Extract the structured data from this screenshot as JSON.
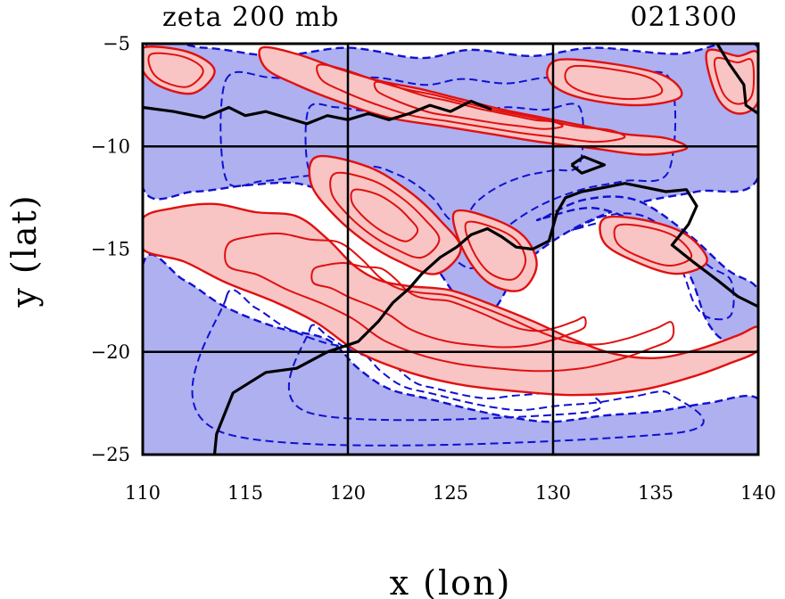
{
  "chart_data": {
    "type": "contour",
    "title": "zeta 200 mb",
    "timestamp": "021300",
    "xlabel": "x (lon)",
    "ylabel": "y (lat)",
    "xlim": [
      110,
      140
    ],
    "ylim": [
      -25,
      -5
    ],
    "xticks": [
      110,
      115,
      120,
      125,
      130,
      135,
      140
    ],
    "yticks": [
      -5,
      -10,
      -15,
      -20,
      -25
    ],
    "gridlines_x": [
      120,
      130
    ],
    "gridlines_y": [
      -10,
      -20
    ],
    "grid": true,
    "colors": {
      "positive_fill": "#f8c4c4",
      "positive_contour": "#e01010",
      "negative_fill": "#aeb0f0",
      "negative_contour": "#1010d0",
      "coastline": "#000000"
    },
    "coastline": [
      [
        [
          110.0,
          -8.1
        ],
        [
          111.5,
          -8.3
        ],
        [
          113.0,
          -8.6
        ],
        [
          114.2,
          -8.1
        ],
        [
          115.0,
          -8.5
        ],
        [
          116.0,
          -8.3
        ],
        [
          117.0,
          -8.6
        ],
        [
          118.0,
          -8.9
        ],
        [
          119.0,
          -8.5
        ],
        [
          120.0,
          -8.7
        ],
        [
          121.0,
          -8.4
        ],
        [
          122.0,
          -8.7
        ],
        [
          123.0,
          -8.4
        ],
        [
          124.0,
          -8.0
        ],
        [
          125.0,
          -8.3
        ],
        [
          126.0,
          -7.8
        ],
        [
          127.0,
          -8.2
        ]
      ],
      [
        [
          113.5,
          -25.0
        ],
        [
          113.6,
          -24.0
        ],
        [
          114.0,
          -23.0
        ],
        [
          114.4,
          -22.0
        ],
        [
          116.0,
          -21.0
        ],
        [
          117.5,
          -20.8
        ],
        [
          119.0,
          -20.0
        ],
        [
          120.5,
          -19.5
        ],
        [
          121.5,
          -18.5
        ],
        [
          122.2,
          -17.6
        ],
        [
          123.0,
          -16.9
        ],
        [
          123.6,
          -16.2
        ],
        [
          124.5,
          -15.4
        ],
        [
          125.3,
          -14.9
        ],
        [
          126.0,
          -14.3
        ],
        [
          126.8,
          -14.0
        ],
        [
          127.5,
          -14.4
        ],
        [
          128.2,
          -14.9
        ],
        [
          129.0,
          -15.0
        ],
        [
          129.8,
          -14.6
        ],
        [
          130.2,
          -13.2
        ],
        [
          130.6,
          -12.5
        ],
        [
          131.4,
          -12.2
        ],
        [
          132.5,
          -12.0
        ],
        [
          133.5,
          -11.8
        ],
        [
          134.5,
          -12.0
        ],
        [
          135.5,
          -12.2
        ],
        [
          136.5,
          -12.1
        ],
        [
          137.0,
          -12.9
        ],
        [
          136.6,
          -13.8
        ],
        [
          135.8,
          -14.8
        ],
        [
          136.8,
          -15.6
        ],
        [
          138.0,
          -16.5
        ],
        [
          139.0,
          -17.3
        ],
        [
          140.0,
          -17.8
        ]
      ],
      [
        [
          130.9,
          -10.9
        ],
        [
          131.5,
          -10.5
        ],
        [
          132.5,
          -10.9
        ],
        [
          131.4,
          -11.3
        ],
        [
          130.9,
          -10.9
        ]
      ],
      [
        [
          138.0,
          -5.0
        ],
        [
          138.6,
          -6.0
        ],
        [
          139.3,
          -7.0
        ],
        [
          139.4,
          -8.0
        ],
        [
          140.0,
          -8.4
        ]
      ]
    ],
    "regions": [
      {
        "sign": "negative",
        "levels": 3,
        "outline": [
          [
            110.0,
            -5.4
          ],
          [
            113.0,
            -5.2
          ],
          [
            116.5,
            -5.6
          ],
          [
            120.0,
            -5.2
          ],
          [
            123.5,
            -5.7
          ],
          [
            126.0,
            -5.3
          ],
          [
            129.0,
            -5.6
          ],
          [
            132.0,
            -5.2
          ],
          [
            136.0,
            -5.5
          ],
          [
            140.0,
            -5.2
          ],
          [
            140.0,
            -11.5
          ],
          [
            137.0,
            -12.2
          ],
          [
            134.0,
            -12.8
          ],
          [
            131.0,
            -14.0
          ],
          [
            128.5,
            -15.8
          ],
          [
            127.0,
            -18.0
          ],
          [
            125.5,
            -17.5
          ],
          [
            124.0,
            -15.5
          ],
          [
            122.5,
            -14.2
          ],
          [
            121.0,
            -13.2
          ],
          [
            119.5,
            -12.5
          ],
          [
            117.5,
            -11.8
          ],
          [
            115.0,
            -11.9
          ],
          [
            112.5,
            -12.2
          ],
          [
            110.0,
            -12.0
          ]
        ]
      },
      {
        "sign": "negative",
        "levels": 3,
        "outline": [
          [
            110.0,
            -15.8
          ],
          [
            112.0,
            -16.5
          ],
          [
            114.0,
            -17.8
          ],
          [
            116.5,
            -18.8
          ],
          [
            119.0,
            -19.4
          ],
          [
            120.5,
            -20.8
          ],
          [
            122.0,
            -21.8
          ],
          [
            124.0,
            -22.3
          ],
          [
            126.0,
            -22.8
          ],
          [
            128.0,
            -23.2
          ],
          [
            130.0,
            -23.4
          ],
          [
            132.5,
            -23.1
          ],
          [
            135.0,
            -22.9
          ],
          [
            137.5,
            -22.5
          ],
          [
            140.0,
            -22.3
          ],
          [
            140.0,
            -25.0
          ],
          [
            110.0,
            -25.0
          ]
        ]
      },
      {
        "sign": "negative",
        "levels": 2,
        "outline": [
          [
            129.5,
            -13.5
          ],
          [
            132.0,
            -13.0
          ],
          [
            134.5,
            -14.0
          ],
          [
            136.5,
            -16.0
          ],
          [
            137.5,
            -18.5
          ],
          [
            138.5,
            -19.5
          ],
          [
            140.0,
            -19.3
          ],
          [
            140.0,
            -17.0
          ],
          [
            138.5,
            -16.0
          ],
          [
            136.5,
            -14.2
          ],
          [
            134.0,
            -12.6
          ],
          [
            131.5,
            -12.6
          ],
          [
            129.5,
            -13.5
          ]
        ]
      },
      {
        "sign": "positive",
        "levels": 3,
        "outline": [
          [
            110.0,
            -13.5
          ],
          [
            111.5,
            -13.0
          ],
          [
            113.5,
            -12.8
          ],
          [
            115.5,
            -13.2
          ],
          [
            117.5,
            -13.4
          ],
          [
            119.0,
            -14.5
          ],
          [
            120.3,
            -15.8
          ],
          [
            121.5,
            -16.5
          ],
          [
            123.0,
            -16.8
          ],
          [
            125.0,
            -17.0
          ],
          [
            127.0,
            -17.7
          ],
          [
            129.0,
            -18.5
          ],
          [
            131.0,
            -19.4
          ],
          [
            133.0,
            -20.1
          ],
          [
            135.0,
            -20.3
          ],
          [
            137.0,
            -19.9
          ],
          [
            139.0,
            -19.2
          ],
          [
            140.0,
            -18.8
          ],
          [
            140.0,
            -19.9
          ],
          [
            138.5,
            -20.6
          ],
          [
            136.5,
            -21.3
          ],
          [
            134.0,
            -21.9
          ],
          [
            131.0,
            -22.1
          ],
          [
            128.0,
            -21.9
          ],
          [
            125.5,
            -21.6
          ],
          [
            123.0,
            -21.0
          ],
          [
            120.5,
            -20.0
          ],
          [
            118.5,
            -18.6
          ],
          [
            116.5,
            -17.6
          ],
          [
            114.0,
            -16.6
          ],
          [
            112.0,
            -15.6
          ],
          [
            110.0,
            -15.0
          ]
        ]
      },
      {
        "sign": "positive",
        "levels": 3,
        "outline": [
          [
            115.8,
            -5.2
          ],
          [
            117.5,
            -5.5
          ],
          [
            119.5,
            -6.2
          ],
          [
            121.5,
            -6.8
          ],
          [
            123.5,
            -7.2
          ],
          [
            125.5,
            -7.7
          ],
          [
            127.5,
            -8.2
          ],
          [
            129.5,
            -8.6
          ],
          [
            131.5,
            -9.0
          ],
          [
            133.5,
            -9.4
          ],
          [
            135.5,
            -9.6
          ],
          [
            136.5,
            -10.1
          ],
          [
            134.5,
            -10.4
          ],
          [
            132.0,
            -10.1
          ],
          [
            129.5,
            -9.8
          ],
          [
            127.0,
            -9.4
          ],
          [
            124.5,
            -9.0
          ],
          [
            122.0,
            -8.6
          ],
          [
            119.5,
            -7.8
          ],
          [
            117.5,
            -7.0
          ],
          [
            116.0,
            -6.2
          ]
        ]
      },
      {
        "sign": "positive",
        "levels": 3,
        "outline": [
          [
            118.5,
            -10.5
          ],
          [
            121.0,
            -11.0
          ],
          [
            123.0,
            -12.2
          ],
          [
            124.5,
            -13.6
          ],
          [
            125.5,
            -15.0
          ],
          [
            124.3,
            -16.2
          ],
          [
            122.5,
            -15.6
          ],
          [
            120.8,
            -14.6
          ],
          [
            119.2,
            -13.2
          ],
          [
            118.2,
            -11.8
          ]
        ]
      },
      {
        "sign": "positive",
        "levels": 2,
        "outline": [
          [
            110.0,
            -5.2
          ],
          [
            112.2,
            -5.4
          ],
          [
            113.5,
            -6.3
          ],
          [
            112.5,
            -7.4
          ],
          [
            110.9,
            -7.1
          ],
          [
            110.0,
            -6.3
          ]
        ]
      },
      {
        "sign": "positive",
        "levels": 2,
        "outline": [
          [
            130.2,
            -5.8
          ],
          [
            133.0,
            -6.0
          ],
          [
            135.5,
            -6.6
          ],
          [
            136.2,
            -7.6
          ],
          [
            134.0,
            -8.0
          ],
          [
            131.2,
            -7.6
          ],
          [
            129.8,
            -6.8
          ]
        ]
      },
      {
        "sign": "positive",
        "levels": 2,
        "outline": [
          [
            132.5,
            -13.5
          ],
          [
            134.5,
            -13.6
          ],
          [
            136.5,
            -14.3
          ],
          [
            137.5,
            -15.6
          ],
          [
            136.0,
            -16.2
          ],
          [
            134.0,
            -15.6
          ],
          [
            132.5,
            -14.7
          ]
        ]
      },
      {
        "sign": "positive",
        "levels": 2,
        "outline": [
          [
            137.5,
            -5.4
          ],
          [
            139.0,
            -5.6
          ],
          [
            140.0,
            -5.5
          ],
          [
            140.0,
            -7.8
          ],
          [
            139.0,
            -8.4
          ],
          [
            138.0,
            -7.6
          ]
        ]
      },
      {
        "sign": "positive",
        "levels": 2,
        "outline": [
          [
            125.2,
            -13.2
          ],
          [
            127.0,
            -13.5
          ],
          [
            128.6,
            -14.4
          ],
          [
            129.2,
            -15.8
          ],
          [
            128.4,
            -17.0
          ],
          [
            126.8,
            -16.6
          ],
          [
            125.6,
            -15.0
          ]
        ]
      }
    ]
  }
}
